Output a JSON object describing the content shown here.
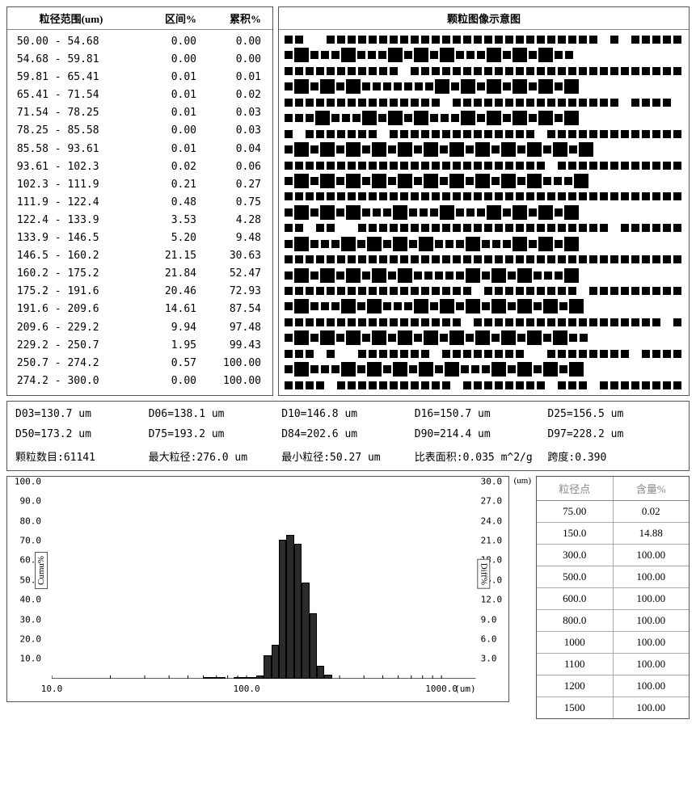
{
  "distribution_table": {
    "headers": [
      "粒径范围(um)",
      "区间%",
      "累积%"
    ],
    "rows": [
      {
        "range": " 50.00 - 54.68",
        "interval": "0.00",
        "cum": "0.00"
      },
      {
        "range": " 54.68 - 59.81",
        "interval": "0.00",
        "cum": "0.00"
      },
      {
        "range": " 59.81 - 65.41",
        "interval": "0.01",
        "cum": "0.01"
      },
      {
        "range": " 65.41 - 71.54",
        "interval": "0.01",
        "cum": "0.02"
      },
      {
        "range": " 71.54 - 78.25",
        "interval": "0.01",
        "cum": "0.03"
      },
      {
        "range": " 78.25 - 85.58",
        "interval": "0.00",
        "cum": "0.03"
      },
      {
        "range": " 85.58 - 93.61",
        "interval": "0.01",
        "cum": "0.04"
      },
      {
        "range": " 93.61 - 102.3",
        "interval": "0.02",
        "cum": "0.06"
      },
      {
        "range": " 102.3 - 111.9",
        "interval": "0.21",
        "cum": "0.27"
      },
      {
        "range": " 111.9 - 122.4",
        "interval": "0.48",
        "cum": "0.75"
      },
      {
        "range": " 122.4 - 133.9",
        "interval": "3.53",
        "cum": "4.28"
      },
      {
        "range": " 133.9 - 146.5",
        "interval": "5.20",
        "cum": "9.48"
      },
      {
        "range": " 146.5 - 160.2",
        "interval": "21.15",
        "cum": "30.63"
      },
      {
        "range": " 160.2 - 175.2",
        "interval": "21.84",
        "cum": "52.47"
      },
      {
        "range": " 175.2 - 191.6",
        "interval": "20.46",
        "cum": "72.93"
      },
      {
        "range": " 191.6 - 209.6",
        "interval": "14.61",
        "cum": "87.54"
      },
      {
        "range": " 209.6 - 229.2",
        "interval": "9.94",
        "cum": "97.48"
      },
      {
        "range": " 229.2 - 250.7",
        "interval": "1.95",
        "cum": "99.43"
      },
      {
        "range": " 250.7 - 274.2",
        "interval": "0.57",
        "cum": "100.00"
      },
      {
        "range": " 274.2 - 300.0",
        "interval": "0.00",
        "cum": "100.00"
      }
    ]
  },
  "particle_image_title": "颗粒图像示意图",
  "stats": {
    "rows": [
      [
        "D03=130.7 um",
        "D06=138.1 um",
        "D10=146.8 um",
        "D16=150.7 um",
        "D25=156.5 um"
      ],
      [
        "D50=173.2 um",
        "D75=193.2 um",
        "D84=202.6 um",
        "D90=214.4 um",
        "D97=228.2 um"
      ],
      [
        "颗粒数目:61141",
        "最大粒径:276.0 um",
        "最小粒径:50.27  um",
        "比表面积:0.035 m^2/g",
        "跨度:0.390"
      ]
    ]
  },
  "chart": {
    "type": "combo-bar-line-logx",
    "y_left": {
      "label": "Cumu%",
      "min": 0,
      "max": 100,
      "ticks": [
        "100.0",
        "90.0",
        "80.0",
        "70.0",
        "60.0",
        "50.0",
        "40.0",
        "30.0",
        "20.0",
        "10.0"
      ]
    },
    "y_right": {
      "label": "Diff%",
      "min": 0,
      "max": 30,
      "ticks": [
        "30.0",
        "27.0",
        "24.0",
        "21.0",
        "18.0",
        "15.0",
        "12.0",
        "9.0",
        "6.0",
        "3.0"
      ]
    },
    "x": {
      "scale": "log",
      "min": 10,
      "max": 1500,
      "ticks": [
        {
          "v": 10,
          "label": "10.0"
        },
        {
          "v": 100,
          "label": "100.0"
        },
        {
          "v": 1000,
          "label": "1000.0"
        }
      ],
      "unit_label": "(um)"
    },
    "bar_color": "#2b2b2b",
    "bar_border": "#000000",
    "background": "#ffffff",
    "grid_color": "#cccccc",
    "bars": [
      {
        "x_lo": 50.0,
        "x_hi": 54.68,
        "diff": 0.0
      },
      {
        "x_lo": 54.68,
        "x_hi": 59.81,
        "diff": 0.0
      },
      {
        "x_lo": 59.81,
        "x_hi": 65.41,
        "diff": 0.01
      },
      {
        "x_lo": 65.41,
        "x_hi": 71.54,
        "diff": 0.01
      },
      {
        "x_lo": 71.54,
        "x_hi": 78.25,
        "diff": 0.01
      },
      {
        "x_lo": 78.25,
        "x_hi": 85.58,
        "diff": 0.0
      },
      {
        "x_lo": 85.58,
        "x_hi": 93.61,
        "diff": 0.01
      },
      {
        "x_lo": 93.61,
        "x_hi": 102.3,
        "diff": 0.02
      },
      {
        "x_lo": 102.3,
        "x_hi": 111.9,
        "diff": 0.21
      },
      {
        "x_lo": 111.9,
        "x_hi": 122.4,
        "diff": 0.48
      },
      {
        "x_lo": 122.4,
        "x_hi": 133.9,
        "diff": 3.53
      },
      {
        "x_lo": 133.9,
        "x_hi": 146.5,
        "diff": 5.2
      },
      {
        "x_lo": 146.5,
        "x_hi": 160.2,
        "diff": 21.15
      },
      {
        "x_lo": 160.2,
        "x_hi": 175.2,
        "diff": 21.84
      },
      {
        "x_lo": 175.2,
        "x_hi": 191.6,
        "diff": 20.46
      },
      {
        "x_lo": 191.6,
        "x_hi": 209.6,
        "diff": 14.61
      },
      {
        "x_lo": 209.6,
        "x_hi": 229.2,
        "diff": 9.94
      },
      {
        "x_lo": 229.2,
        "x_hi": 250.7,
        "diff": 1.95
      },
      {
        "x_lo": 250.7,
        "x_hi": 274.2,
        "diff": 0.57
      },
      {
        "x_lo": 274.2,
        "x_hi": 300.0,
        "diff": 0.0
      }
    ]
  },
  "points_table": {
    "headers": [
      "粒径点",
      "含量%"
    ],
    "rows": [
      {
        "p": "75.00",
        "c": "0.02"
      },
      {
        "p": "150.0",
        "c": "14.88"
      },
      {
        "p": "300.0",
        "c": "100.00"
      },
      {
        "p": "500.0",
        "c": "100.00"
      },
      {
        "p": "600.0",
        "c": "100.00"
      },
      {
        "p": "800.0",
        "c": "100.00"
      },
      {
        "p": "1000",
        "c": "100.00"
      },
      {
        "p": "1100",
        "c": "100.00"
      },
      {
        "p": "1200",
        "c": "100.00"
      },
      {
        "p": "1500",
        "c": "100.00"
      }
    ]
  },
  "particle_grid": {
    "rows": 23,
    "pattern_note": "alternating rows of small-squares and rows containing large-circles among small-squares",
    "small_color": "#000000",
    "large_color": "#000000"
  }
}
